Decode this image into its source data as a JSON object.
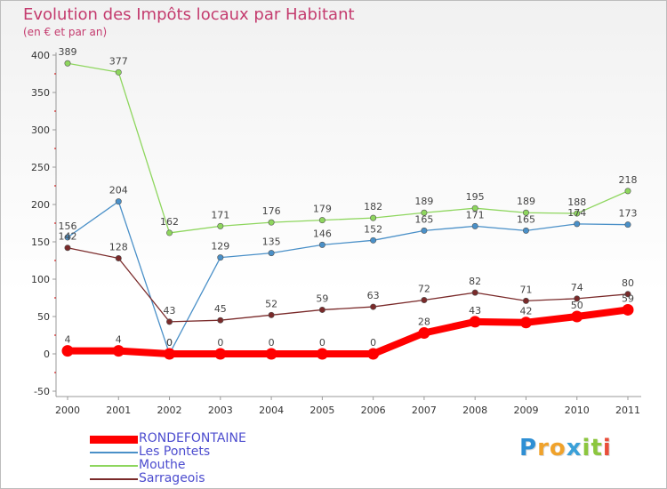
{
  "chart_data": {
    "type": "line",
    "title": "Evolution des Impôts locaux par Habitant",
    "subtitle": "(en € et par an)",
    "xlabel": "",
    "ylabel": "",
    "categories": [
      "2000",
      "2001",
      "2002",
      "2003",
      "2004",
      "2005",
      "2006",
      "2007",
      "2008",
      "2009",
      "2010",
      "2011"
    ],
    "ylim": [
      -50,
      400
    ],
    "yticks": [
      -50,
      0,
      50,
      100,
      150,
      200,
      250,
      300,
      350,
      400
    ],
    "series": [
      {
        "name": "RONDEFONTAINE",
        "color": "#ff0000",
        "width": 8,
        "values": [
          4,
          4,
          0,
          0,
          0,
          0,
          0,
          28,
          43,
          42,
          50,
          59
        ],
        "labels": [
          "4",
          "4",
          "0",
          "0",
          "0",
          "0",
          "0",
          "28",
          "43",
          "42",
          "50",
          "59"
        ]
      },
      {
        "name": "Les Pontets",
        "color": "#4a90c8",
        "width": 1.3,
        "values": [
          156,
          204,
          0,
          129,
          135,
          146,
          152,
          165,
          171,
          165,
          174,
          173
        ],
        "labels": [
          "156",
          "204",
          "0",
          "129",
          "135",
          "146",
          "152",
          "165",
          "171",
          "165",
          "174",
          "173"
        ]
      },
      {
        "name": "Mouthe",
        "color": "#8ed65e",
        "width": 1.3,
        "values": [
          389,
          377,
          162,
          171,
          176,
          179,
          182,
          189,
          195,
          189,
          188,
          218
        ],
        "labels": [
          "389",
          "377",
          "162",
          "171",
          "176",
          "179",
          "182",
          "189",
          "195",
          "189",
          "188",
          "218"
        ]
      },
      {
        "name": "Sarrageois",
        "color": "#7a2a2a",
        "width": 1.3,
        "values": [
          142,
          128,
          43,
          45,
          52,
          59,
          63,
          72,
          82,
          71,
          74,
          80
        ],
        "labels": [
          "142",
          "128",
          "43",
          "45",
          "52",
          "59",
          "63",
          "72",
          "82",
          "71",
          "74",
          "80"
        ]
      }
    ],
    "legend_position": "bottom-left"
  },
  "brand": {
    "letters": [
      "P",
      "r",
      "o",
      "x",
      "i",
      "t",
      "i"
    ],
    "colors": [
      "#2f8fd4",
      "#f0a22b",
      "#f0a22b",
      "#3aa0d8",
      "#8cc63e",
      "#8cc63e",
      "#e94e3a"
    ]
  }
}
